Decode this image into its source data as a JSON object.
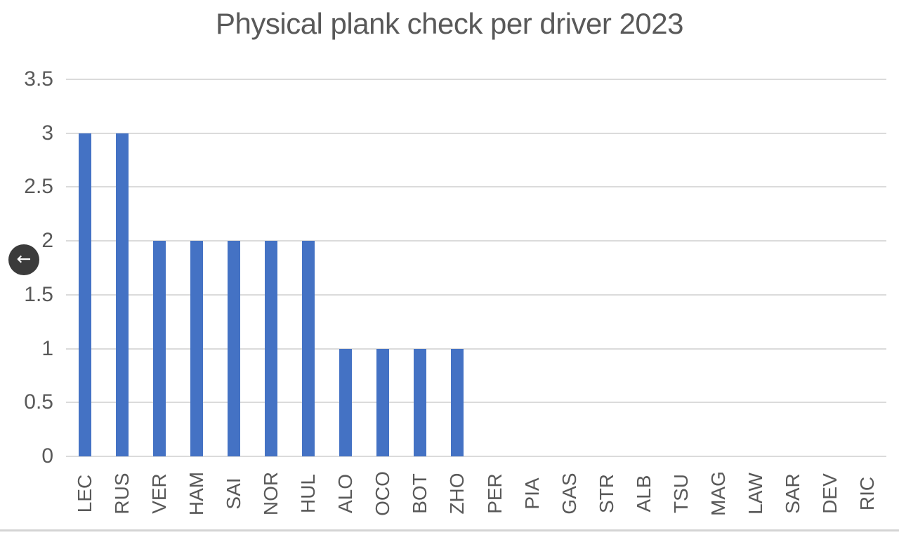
{
  "overlay": {
    "back_button": {
      "symbol": "←",
      "background": "#3b3b3b",
      "arrow_color": "#ffffff"
    }
  },
  "chart_data": {
    "type": "bar",
    "title": "Physical plank check per driver 2023",
    "categories": [
      "LEC",
      "RUS",
      "VER",
      "HAM",
      "SAI",
      "NOR",
      "HUL",
      "ALO",
      "OCO",
      "BOT",
      "ZHO",
      "PER",
      "PIA",
      "GAS",
      "STR",
      "ALB",
      "TSU",
      "MAG",
      "LAW",
      "SAR",
      "DEV",
      "RIC"
    ],
    "values": [
      3,
      3,
      2,
      2,
      2,
      2,
      2,
      1,
      1,
      1,
      1,
      0,
      0,
      0,
      0,
      0,
      0,
      0,
      0,
      0,
      0,
      0
    ],
    "xlabel": "",
    "ylabel": "",
    "ylim": [
      0,
      3.5
    ],
    "yticks": [
      0,
      0.5,
      1,
      1.5,
      2,
      2.5,
      3,
      3.5
    ],
    "grid": true,
    "legend": false,
    "bar_color": "#4472C4",
    "gridline_color": "#DBDBDB",
    "axis_text_color": "#595959",
    "title_color": "#595959"
  },
  "footer": {
    "divider_color": "#d4d4d4"
  }
}
